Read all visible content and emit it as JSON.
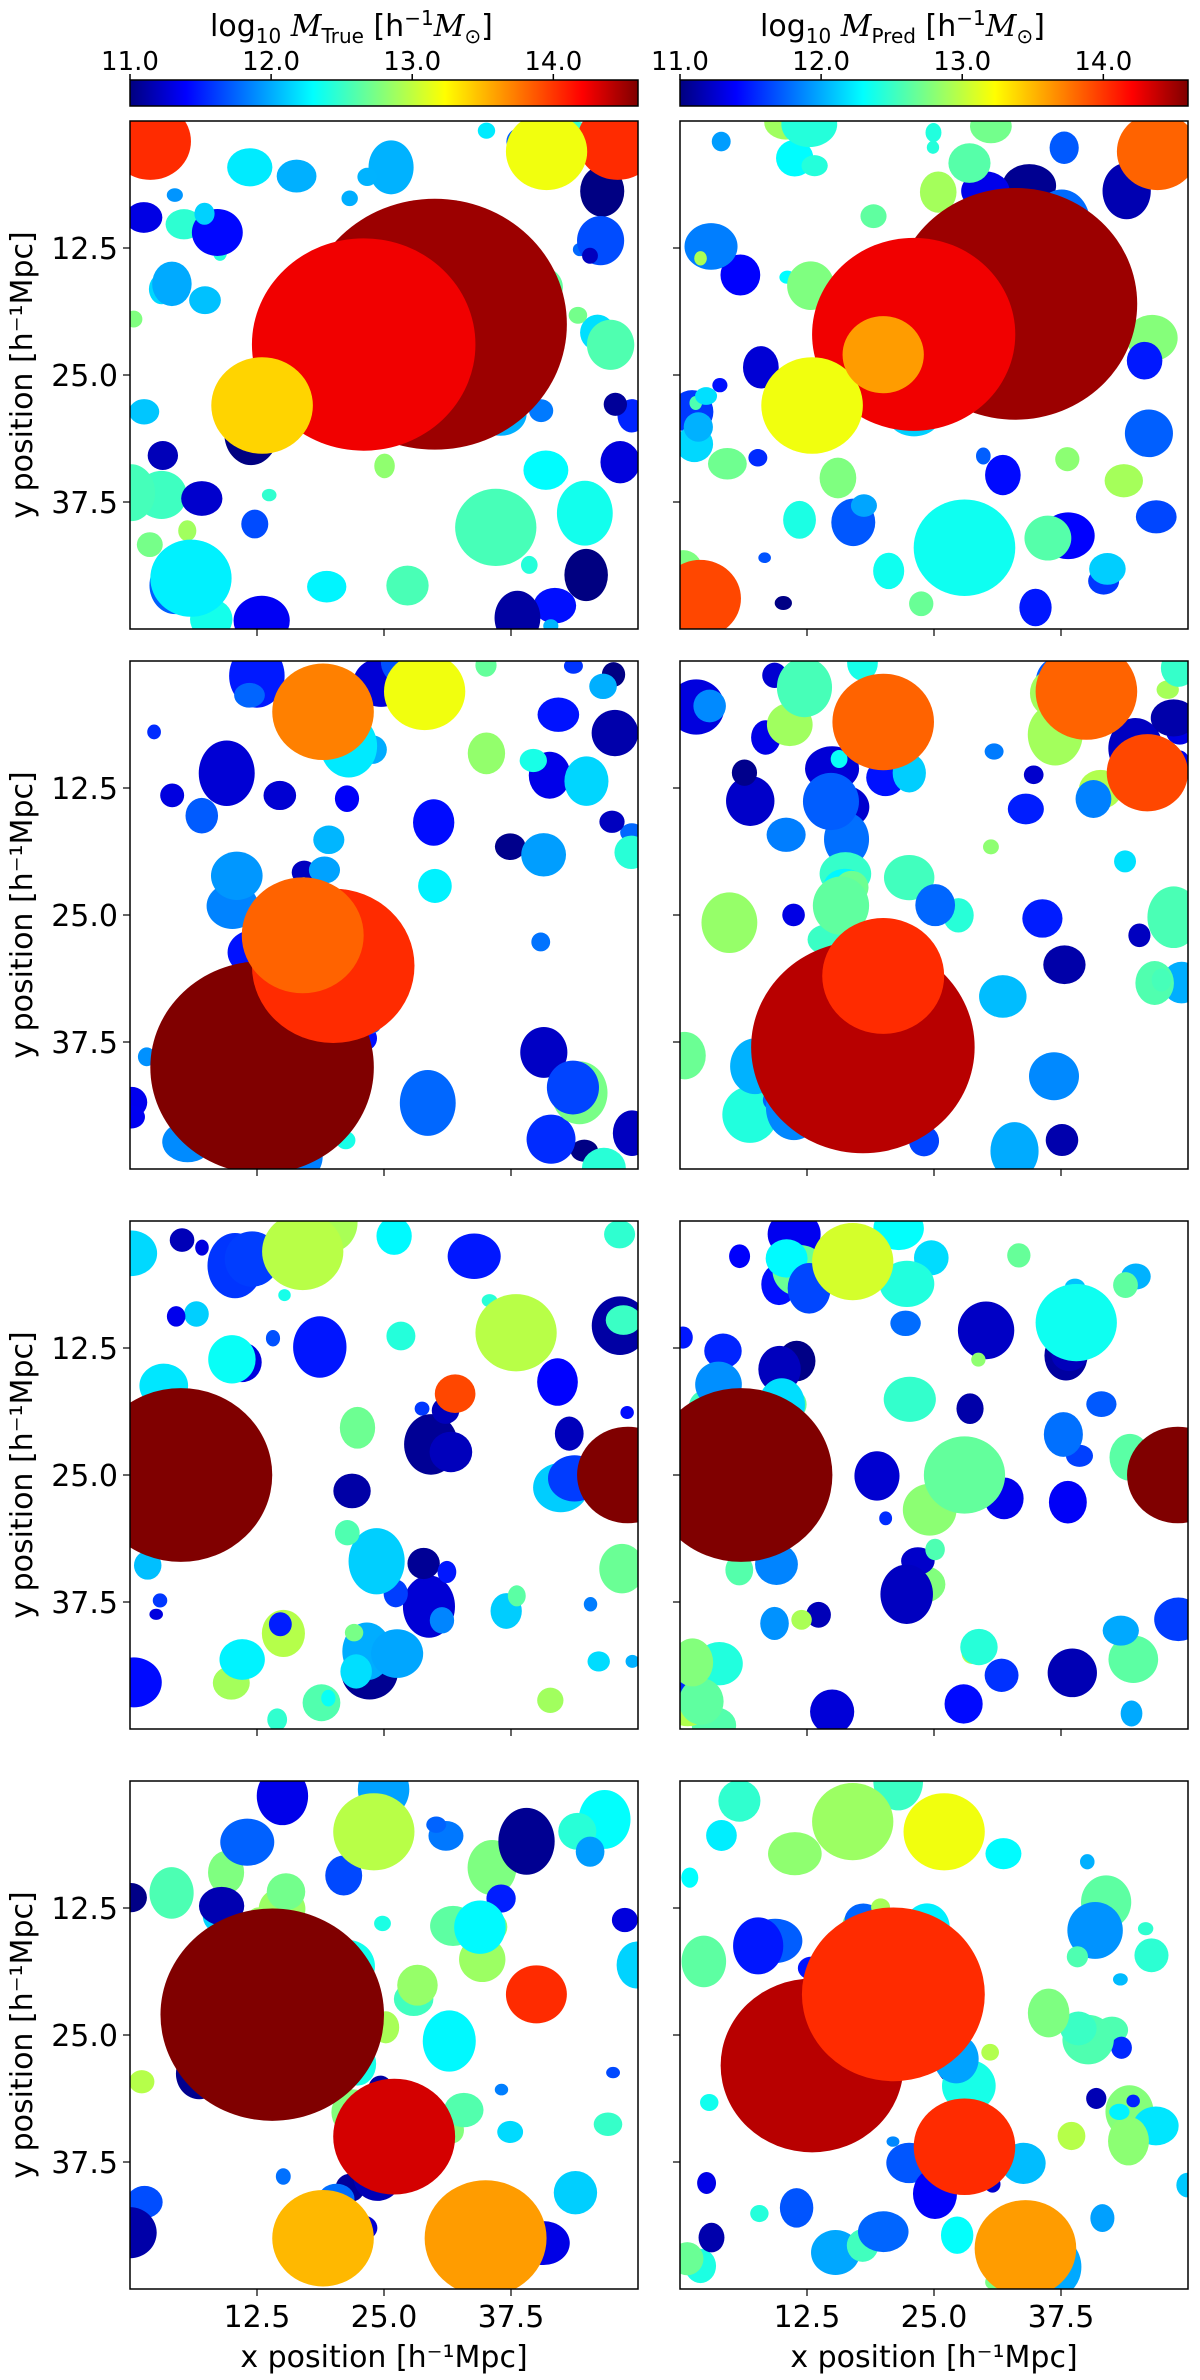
{
  "colorbars": [
    {
      "label_prefix": "log",
      "label_sub": "10",
      "label_var": "M",
      "label_var_sub": "True",
      "label_units": " [h",
      "label_units_sup": "−1",
      "label_units_var": "M",
      "label_units_var_sub": "⊙",
      "label_close": "]",
      "ticks": [
        "11.0",
        "12.0",
        "13.0",
        "14.0"
      ],
      "range": [
        11.0,
        14.6
      ],
      "colormap": "jet"
    },
    {
      "label_prefix": "log",
      "label_sub": "10",
      "label_var": "M",
      "label_var_sub": "Pred",
      "label_units": " [h",
      "label_units_sup": "−1",
      "label_units_var": "M",
      "label_units_var_sub": "⊙",
      "label_close": "]",
      "ticks": [
        "11.0",
        "12.0",
        "13.0",
        "14.0"
      ],
      "range": [
        11.0,
        14.6
      ],
      "colormap": "jet"
    }
  ],
  "axes": {
    "xlabel": "x position [h⁻¹Mpc]",
    "ylabel": "y position [h⁻¹Mpc]",
    "tick_labels": [
      "12.5",
      "25.0",
      "37.5"
    ]
  },
  "chart_data": [
    {
      "type": "heatmap",
      "row": 1,
      "column": "True",
      "xlim": [
        0,
        50
      ],
      "ylim": [
        50,
        0
      ],
      "xticks": [
        12.5,
        25.0,
        37.5
      ],
      "yticks": [
        12.5,
        25.0,
        37.5
      ],
      "halos": [
        {
          "x": 30,
          "y": 20,
          "r": 13,
          "log_mass": 14.5
        },
        {
          "x": 23,
          "y": 22,
          "r": 11,
          "log_mass": 14.2
        },
        {
          "x": 13,
          "y": 28,
          "r": 5,
          "log_mass": 13.4
        },
        {
          "x": 36,
          "y": 40,
          "r": 4,
          "log_mass": 12.6
        },
        {
          "x": 6,
          "y": 45,
          "r": 4,
          "log_mass": 12.3
        },
        {
          "x": 2,
          "y": 2,
          "r": 4,
          "log_mass": 14.0
        },
        {
          "x": 48,
          "y": 2,
          "r": 4,
          "log_mass": 14.0
        },
        {
          "x": 41,
          "y": 3,
          "r": 4,
          "log_mass": 13.2
        }
      ]
    },
    {
      "type": "heatmap",
      "row": 1,
      "column": "Pred",
      "xlim": [
        0,
        50
      ],
      "ylim": [
        50,
        0
      ],
      "xticks": [
        12.5,
        25.0,
        37.5
      ],
      "yticks": [
        12.5,
        25.0,
        37.5
      ],
      "halos": [
        {
          "x": 33,
          "y": 18,
          "r": 12,
          "log_mass": 14.5
        },
        {
          "x": 23,
          "y": 21,
          "r": 10,
          "log_mass": 14.2
        },
        {
          "x": 13,
          "y": 28,
          "r": 5,
          "log_mass": 13.2
        },
        {
          "x": 20,
          "y": 23,
          "r": 4,
          "log_mass": 13.6
        },
        {
          "x": 28,
          "y": 42,
          "r": 5,
          "log_mass": 12.4
        },
        {
          "x": 2,
          "y": 47,
          "r": 4,
          "log_mass": 13.9
        },
        {
          "x": 47,
          "y": 3,
          "r": 4,
          "log_mass": 13.8
        }
      ]
    },
    {
      "type": "heatmap",
      "row": 2,
      "column": "True",
      "xlim": [
        0,
        50
      ],
      "ylim": [
        50,
        0
      ],
      "xticks": [
        12.5,
        25.0,
        37.5
      ],
      "yticks": [
        12.5,
        25.0,
        37.5
      ],
      "halos": [
        {
          "x": 13,
          "y": 40,
          "r": 11,
          "log_mass": 14.6
        },
        {
          "x": 20,
          "y": 30,
          "r": 8,
          "log_mass": 14.0
        },
        {
          "x": 17,
          "y": 27,
          "r": 6,
          "log_mass": 13.8
        },
        {
          "x": 19,
          "y": 5,
          "r": 5,
          "log_mass": 13.7
        },
        {
          "x": 29,
          "y": 3,
          "r": 4,
          "log_mass": 13.2
        }
      ]
    },
    {
      "type": "heatmap",
      "row": 2,
      "column": "Pred",
      "xlim": [
        0,
        50
      ],
      "ylim": [
        50,
        0
      ],
      "xticks": [
        12.5,
        25.0,
        37.5
      ],
      "yticks": [
        12.5,
        25.0,
        37.5
      ],
      "halos": [
        {
          "x": 18,
          "y": 38,
          "r": 11,
          "log_mass": 14.4
        },
        {
          "x": 20,
          "y": 31,
          "r": 6,
          "log_mass": 14.0
        },
        {
          "x": 20,
          "y": 6,
          "r": 5,
          "log_mass": 13.8
        },
        {
          "x": 40,
          "y": 3,
          "r": 5,
          "log_mass": 13.8
        },
        {
          "x": 46,
          "y": 11,
          "r": 4,
          "log_mass": 13.9
        }
      ]
    },
    {
      "type": "heatmap",
      "row": 3,
      "column": "True",
      "xlim": [
        0,
        50
      ],
      "ylim": [
        50,
        0
      ],
      "xticks": [
        12.5,
        25.0,
        37.5
      ],
      "yticks": [
        12.5,
        25.0,
        37.5
      ],
      "halos": [
        {
          "x": 5,
          "y": 25,
          "r": 9,
          "log_mass": 14.6
        },
        {
          "x": 49,
          "y": 25,
          "r": 5,
          "log_mass": 14.6
        },
        {
          "x": 17,
          "y": 3,
          "r": 4,
          "log_mass": 13.0
        },
        {
          "x": 38,
          "y": 11,
          "r": 4,
          "log_mass": 13.0
        },
        {
          "x": 32,
          "y": 17,
          "r": 2,
          "log_mass": 13.9
        }
      ]
    },
    {
      "type": "heatmap",
      "row": 3,
      "column": "Pred",
      "xlim": [
        0,
        50
      ],
      "ylim": [
        50,
        0
      ],
      "xticks": [
        12.5,
        25.0,
        37.5
      ],
      "yticks": [
        12.5,
        25.0,
        37.5
      ],
      "halos": [
        {
          "x": 6,
          "y": 25,
          "r": 9,
          "log_mass": 14.6
        },
        {
          "x": 49,
          "y": 25,
          "r": 5,
          "log_mass": 14.6
        },
        {
          "x": 17,
          "y": 4,
          "r": 4,
          "log_mass": 13.1
        },
        {
          "x": 28,
          "y": 25,
          "r": 4,
          "log_mass": 12.7
        },
        {
          "x": 39,
          "y": 10,
          "r": 4,
          "log_mass": 12.4
        }
      ]
    },
    {
      "type": "heatmap",
      "row": 4,
      "column": "True",
      "xlim": [
        0,
        50
      ],
      "ylim": [
        50,
        0
      ],
      "xticks": [
        12.5,
        25.0,
        37.5
      ],
      "yticks": [
        12.5,
        25.0,
        37.5
      ],
      "halos": [
        {
          "x": 14,
          "y": 23,
          "r": 11,
          "log_mass": 14.6
        },
        {
          "x": 26,
          "y": 35,
          "r": 6,
          "log_mass": 14.3
        },
        {
          "x": 35,
          "y": 45,
          "r": 6,
          "log_mass": 13.6
        },
        {
          "x": 19,
          "y": 45,
          "r": 5,
          "log_mass": 13.5
        },
        {
          "x": 40,
          "y": 21,
          "r": 3,
          "log_mass": 14.0
        },
        {
          "x": 24,
          "y": 5,
          "r": 4,
          "log_mass": 13.0
        }
      ]
    },
    {
      "type": "heatmap",
      "row": 4,
      "column": "Pred",
      "xlim": [
        0,
        50
      ],
      "ylim": [
        50,
        0
      ],
      "xticks": [
        12.5,
        25.0,
        37.5
      ],
      "yticks": [
        12.5,
        25.0,
        37.5
      ],
      "halos": [
        {
          "x": 13,
          "y": 28,
          "r": 9,
          "log_mass": 14.4
        },
        {
          "x": 21,
          "y": 21,
          "r": 9,
          "log_mass": 14.0
        },
        {
          "x": 28,
          "y": 36,
          "r": 5,
          "log_mass": 14.0
        },
        {
          "x": 34,
          "y": 46,
          "r": 5,
          "log_mass": 13.6
        },
        {
          "x": 26,
          "y": 5,
          "r": 4,
          "log_mass": 13.2
        },
        {
          "x": 17,
          "y": 4,
          "r": 4,
          "log_mass": 12.9
        }
      ]
    }
  ]
}
